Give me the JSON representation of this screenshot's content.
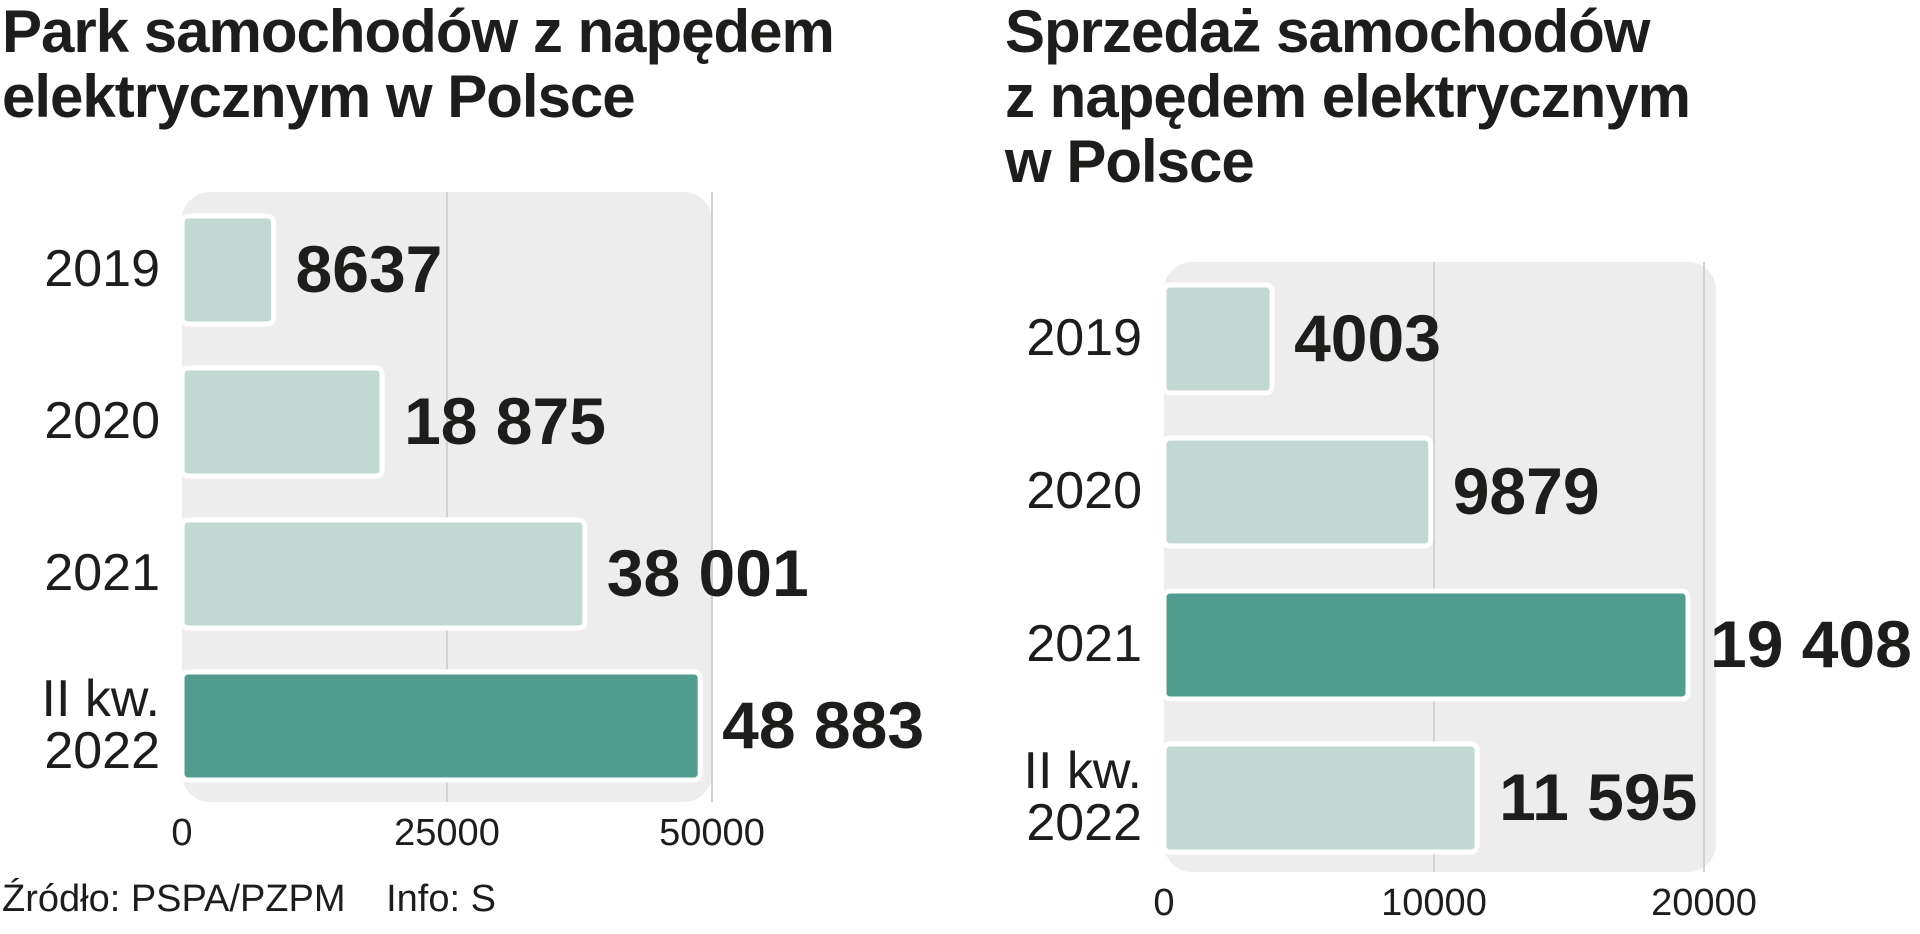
{
  "source": "Źródło: PSPA/PZPM",
  "info": "Info: S",
  "chart_data": [
    {
      "type": "bar",
      "orientation": "horizontal",
      "title": "Park samochodów z napędem elektrycznym w Polsce",
      "categories": [
        "2019",
        "2020",
        "2021",
        "II kw.\n2022"
      ],
      "values": [
        8637,
        18875,
        38001,
        48883
      ],
      "value_labels": [
        "8637",
        "18 875",
        "38 001",
        "48 883"
      ],
      "highlighted_index": 3,
      "xlim": [
        0,
        50000
      ],
      "xticks": [
        0,
        25000,
        50000
      ],
      "xtick_labels": [
        "0",
        "25000",
        "50000"
      ],
      "grid": true,
      "colors": {
        "bar": "#c1d9d2",
        "highlight": "#529c8f",
        "panel": "#ededed",
        "grid": "#d2d2d2"
      }
    },
    {
      "type": "bar",
      "orientation": "horizontal",
      "title": "Sprzedaż samochodów z napędem elektrycznym w Polsce",
      "categories": [
        "2019",
        "2020",
        "2021",
        "II kw.\n2022"
      ],
      "values": [
        4003,
        9879,
        19408,
        11595
      ],
      "value_labels": [
        "4003",
        "9879",
        "19 408",
        "11 595"
      ],
      "highlighted_index": 2,
      "xlim": [
        0,
        20000
      ],
      "xticks": [
        0,
        10000,
        20000
      ],
      "xtick_labels": [
        "0",
        "10000",
        "20000"
      ],
      "grid": true,
      "colors": {
        "bar": "#c1d9d2",
        "highlight": "#529c8f",
        "panel": "#ededed",
        "grid": "#d2d2d2"
      }
    }
  ]
}
